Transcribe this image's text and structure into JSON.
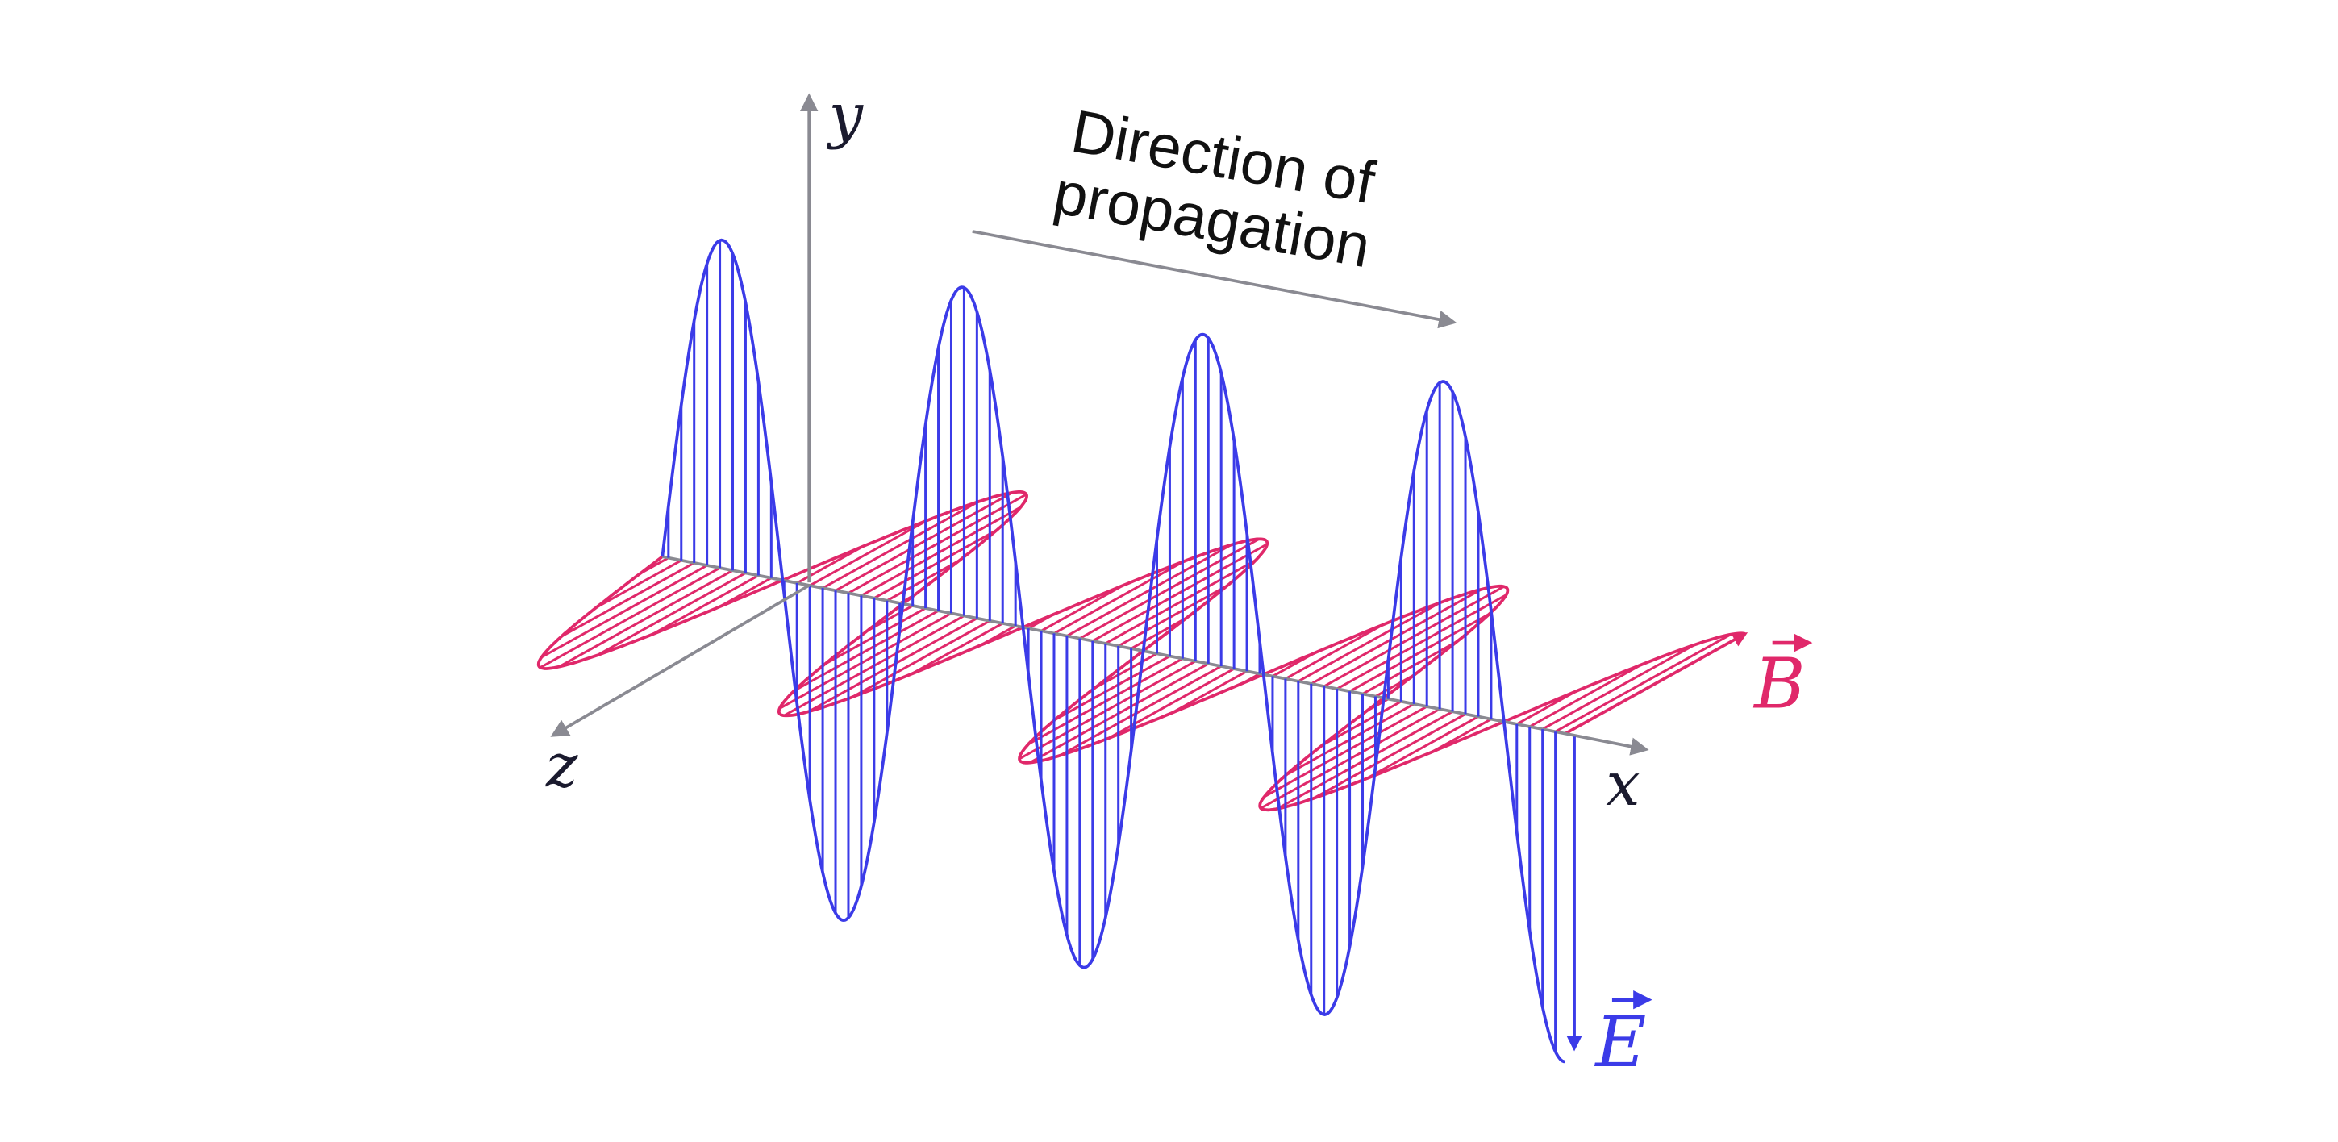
{
  "labels": {
    "y": "y",
    "x": "x",
    "z": "z",
    "direction": [
      "Direction of",
      "propagation"
    ],
    "b_field": "B",
    "e_field": "E"
  }
}
